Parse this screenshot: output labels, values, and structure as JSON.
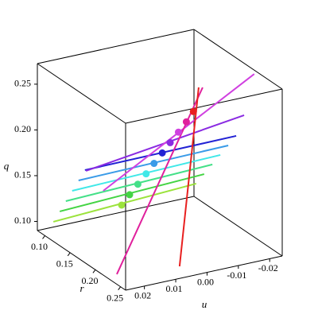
{
  "chart_data": {
    "type": "line3d",
    "x_label": "u",
    "y_label": "r",
    "z_label": "q",
    "ulim": [
      0.026,
      -0.024
    ],
    "rlim": [
      0.085,
      0.26
    ],
    "qlim": [
      0.09,
      0.2725
    ],
    "uticks": [
      0.02,
      0.01,
      {
        "value": 0,
        "label": "0.00"
      },
      -0.01,
      -0.02
    ],
    "rticks": [
      {
        "value": 0.1,
        "label": "0.10"
      },
      0.15,
      {
        "value": 0.2,
        "label": "0.20"
      },
      0.25
    ],
    "qticks": [
      {
        "value": 0.1,
        "label": "0.10"
      },
      0.15,
      {
        "value": 0.2,
        "label": "0.20"
      },
      0.25
    ],
    "box": true,
    "series": [
      {
        "color": "#9be33c",
        "u": [
          0.0233,
          -0.0223
        ],
        "r": [
          0.1,
          0.1
        ],
        "q": [
          0.1032,
          0.1108
        ],
        "point": {
          "u": 0.0015,
          "r": 0.1,
          "q": 0.1051
        }
      },
      {
        "color": "#44d444",
        "u": [
          0.0232,
          -0.0229
        ],
        "r": [
          0.112,
          0.112
        ],
        "q": [
          0.1189,
          0.1252
        ],
        "point": {
          "u": 0.0009,
          "r": 0.112,
          "q": 0.1205
        }
      },
      {
        "color": "#44e088",
        "u": [
          0.0232,
          -0.0236
        ],
        "r": [
          0.124,
          0.124
        ],
        "q": [
          0.1346,
          0.1397
        ],
        "point": {
          "u": 0.0002,
          "r": 0.124,
          "q": 0.1359
        }
      },
      {
        "color": "#40e8e8",
        "u": [
          0.0231,
          -0.0242
        ],
        "r": [
          0.136,
          0.136
        ],
        "q": [
          0.1503,
          0.1541
        ],
        "point": {
          "u": -0.0005,
          "r": 0.136,
          "q": 0.1512
        }
      },
      {
        "color": "#3a9be8",
        "u": [
          0.023,
          -0.0248
        ],
        "r": [
          0.148,
          0.148
        ],
        "q": [
          0.166,
          0.1685
        ],
        "point": {
          "u": -0.0011,
          "r": 0.148,
          "q": 0.1666
        }
      },
      {
        "color": "#2222d4",
        "u": [
          0.0229,
          -0.0254
        ],
        "r": [
          0.16,
          0.16
        ],
        "q": [
          0.1817,
          0.183
        ],
        "point": {
          "u": -0.0018,
          "r": 0.16,
          "q": 0.182
        }
      },
      {
        "color": "#8a2be2",
        "u": [
          0.0245,
          -0.026
        ],
        "r": [
          0.172,
          0.172
        ],
        "q": [
          0.1865,
          0.2096
        ],
        "point": {
          "u": -0.0024,
          "r": 0.172,
          "q": 0.1973
        }
      },
      {
        "color": "#d040e0",
        "u": [
          0.0209,
          -0.0273
        ],
        "r": [
          0.184,
          0.184
        ],
        "q": [
          0.1665,
          0.2582
        ],
        "point": {
          "u": -0.0031,
          "r": 0.184,
          "q": 0.2127
        }
      },
      {
        "color": "#e0209c",
        "u": [
          0.0185,
          -0.0089
        ],
        "r": [
          0.196,
          0.196
        ],
        "q": [
          0.078,
          0.2617
        ],
        "point": {
          "u": -0.0037,
          "r": 0.196,
          "q": 0.228
        }
      },
      {
        "color": "#e82020",
        "u": [
          0.0004,
          -0.0057
        ],
        "r": [
          0.208,
          0.208
        ],
        "q": [
          0.0776,
          0.2686
        ],
        "point": {
          "u": -0.004,
          "r": 0.208,
          "q": 0.2435
        }
      }
    ]
  }
}
